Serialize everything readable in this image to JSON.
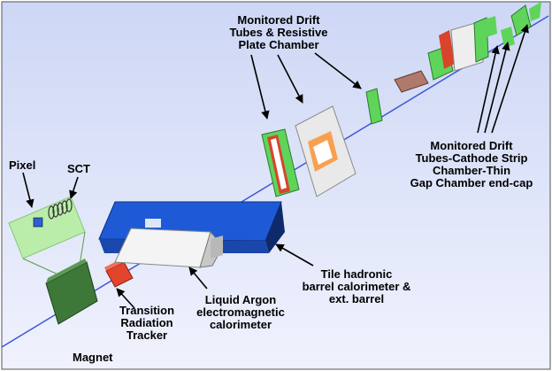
{
  "labels": {
    "pixel": "Pixel",
    "sct": "SCT",
    "magnet": "Magnet",
    "trt_line1": "Transition",
    "trt_line2": "Radiation",
    "trt_line3": "Tracker",
    "lar_line1": "Liquid Argon",
    "lar_line2": "electromagnetic",
    "lar_line3": "calorimeter",
    "tile_line1": "Tile hadronic",
    "tile_line2": "barrel calorimeter &",
    "tile_line3": "ext. barrel",
    "mdt_rpc_line1": "Monitored Drift",
    "mdt_rpc_line2": "Tubes & Resistive",
    "mdt_rpc_line3": "Plate Chamber",
    "mdt_csc_line1": "Monitored Drift",
    "mdt_csc_line2": "Tubes-Cathode Strip",
    "mdt_csc_line3": "Chamber-Thin",
    "mdt_csc_line4": "Gap Chamber end-cap"
  },
  "colors": {
    "background_top": "#cfd8f6",
    "background_bottom": "#eef0fc",
    "beam_axis": "#3f57d9",
    "pixel_sct_box": "#a8e88f",
    "magnet": "#3f7a3b",
    "trt": "#e2452b",
    "lar": "#f2f2f2",
    "tile": "#1f5fd9",
    "muon_green": "#5fd45a",
    "muon_red": "#d8442c",
    "muon_grey": "#e8e8e8",
    "muon_brown": "#b07a6a"
  }
}
